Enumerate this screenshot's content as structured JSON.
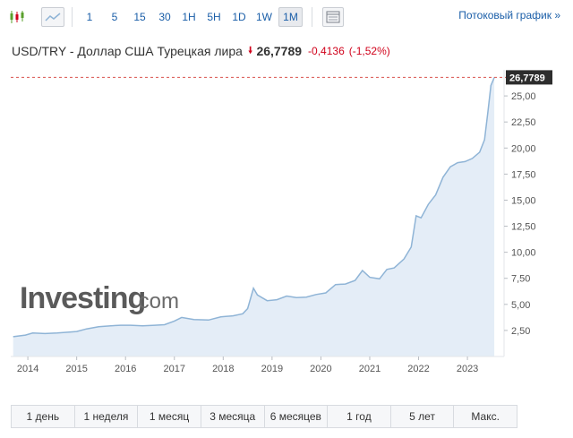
{
  "toolbar": {
    "intervals": [
      "1",
      "5",
      "15",
      "30",
      "1H",
      "5H",
      "1D",
      "1W",
      "1M"
    ],
    "active_interval": "1M",
    "streaming_chart": "Потоковый график »"
  },
  "header": {
    "title": "USD/TRY - Доллар США Турецкая лира",
    "price": "26,7789",
    "change": "-0,4136",
    "change_pct": "(-1,52%)",
    "down_color": "#d0021b"
  },
  "watermark": {
    "text": "Investing",
    "suffix": ".com"
  },
  "ranges": [
    "1 день",
    "1 неделя",
    "1 месяц",
    "3 месяца",
    "6 месяцев",
    "1 год",
    "5 лет",
    "Макс."
  ],
  "chart_data": {
    "type": "area",
    "last_value_label": "26,7789",
    "last_value": 26.7789,
    "ylim": [
      0,
      27.5
    ],
    "yticks": [
      2.5,
      5,
      7.5,
      10,
      12.5,
      15,
      17.5,
      20,
      22.5,
      25
    ],
    "ytick_labels": [
      "2,50",
      "5,00",
      "7,50",
      "10,00",
      "12,50",
      "15,00",
      "17,50",
      "20,00",
      "22,50",
      "25,00"
    ],
    "xlim": [
      2013.65,
      2023.75
    ],
    "xticks": [
      2014,
      2015,
      2016,
      2017,
      2018,
      2019,
      2020,
      2021,
      2022,
      2023
    ],
    "xtick_labels": [
      "2014",
      "2015",
      "2016",
      "2017",
      "2018",
      "2019",
      "2020",
      "2021",
      "2022",
      "2023"
    ],
    "line_color": "#8fb4d6",
    "fill_color": "#e4edf7",
    "price_line_color": "#d9534f",
    "grid": false,
    "x": [
      2013.7,
      2013.95,
      2014.1,
      2014.35,
      2014.6,
      2014.85,
      2015.0,
      2015.2,
      2015.45,
      2015.7,
      2015.9,
      2016.1,
      2016.35,
      2016.6,
      2016.8,
      2017.0,
      2017.15,
      2017.4,
      2017.7,
      2017.95,
      2018.2,
      2018.4,
      2018.5,
      2018.62,
      2018.7,
      2018.9,
      2019.1,
      2019.3,
      2019.5,
      2019.7,
      2019.9,
      2020.1,
      2020.3,
      2020.5,
      2020.7,
      2020.85,
      2021.0,
      2021.2,
      2021.35,
      2021.5,
      2021.7,
      2021.85,
      2021.95,
      2022.05,
      2022.2,
      2022.35,
      2022.5,
      2022.65,
      2022.8,
      2022.95,
      2023.1,
      2023.25,
      2023.35,
      2023.42,
      2023.48,
      2023.55
    ],
    "y": [
      1.9,
      2.05,
      2.25,
      2.2,
      2.25,
      2.35,
      2.4,
      2.65,
      2.85,
      2.95,
      3.0,
      3.0,
      2.95,
      3.0,
      3.05,
      3.4,
      3.75,
      3.55,
      3.5,
      3.8,
      3.9,
      4.1,
      4.6,
      6.55,
      5.9,
      5.35,
      5.45,
      5.8,
      5.65,
      5.7,
      5.95,
      6.1,
      6.9,
      6.95,
      7.3,
      8.25,
      7.6,
      7.45,
      8.35,
      8.5,
      9.35,
      10.5,
      13.5,
      13.3,
      14.6,
      15.5,
      17.2,
      18.2,
      18.6,
      18.7,
      19.0,
      19.6,
      20.8,
      23.5,
      26.0,
      26.78
    ]
  }
}
